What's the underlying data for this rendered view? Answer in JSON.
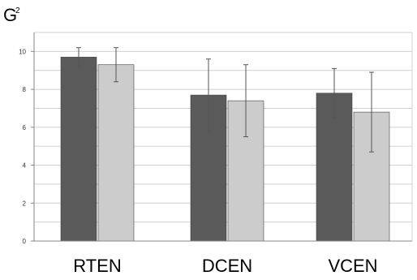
{
  "chart_data": {
    "type": "bar",
    "ylabel": "G",
    "ylabel_superscript": "2",
    "categories": [
      "RTEN",
      "DCEN",
      "VCEN"
    ],
    "ylim": [
      0,
      11
    ],
    "yticks": [
      0,
      2,
      4,
      6,
      8,
      10
    ],
    "grid": true,
    "series": [
      {
        "values": [
          9.7,
          7.7,
          7.8
        ],
        "error": [
          0.5,
          1.9,
          1.3
        ],
        "color": "#5a5a5a"
      },
      {
        "values": [
          9.3,
          7.4,
          6.8
        ],
        "error": [
          0.9,
          1.9,
          2.1
        ],
        "color": "#cccccc"
      }
    ]
  },
  "colors": {
    "grid": "#d0d0d0",
    "axis": "#888888",
    "error_bar": "#555555"
  }
}
